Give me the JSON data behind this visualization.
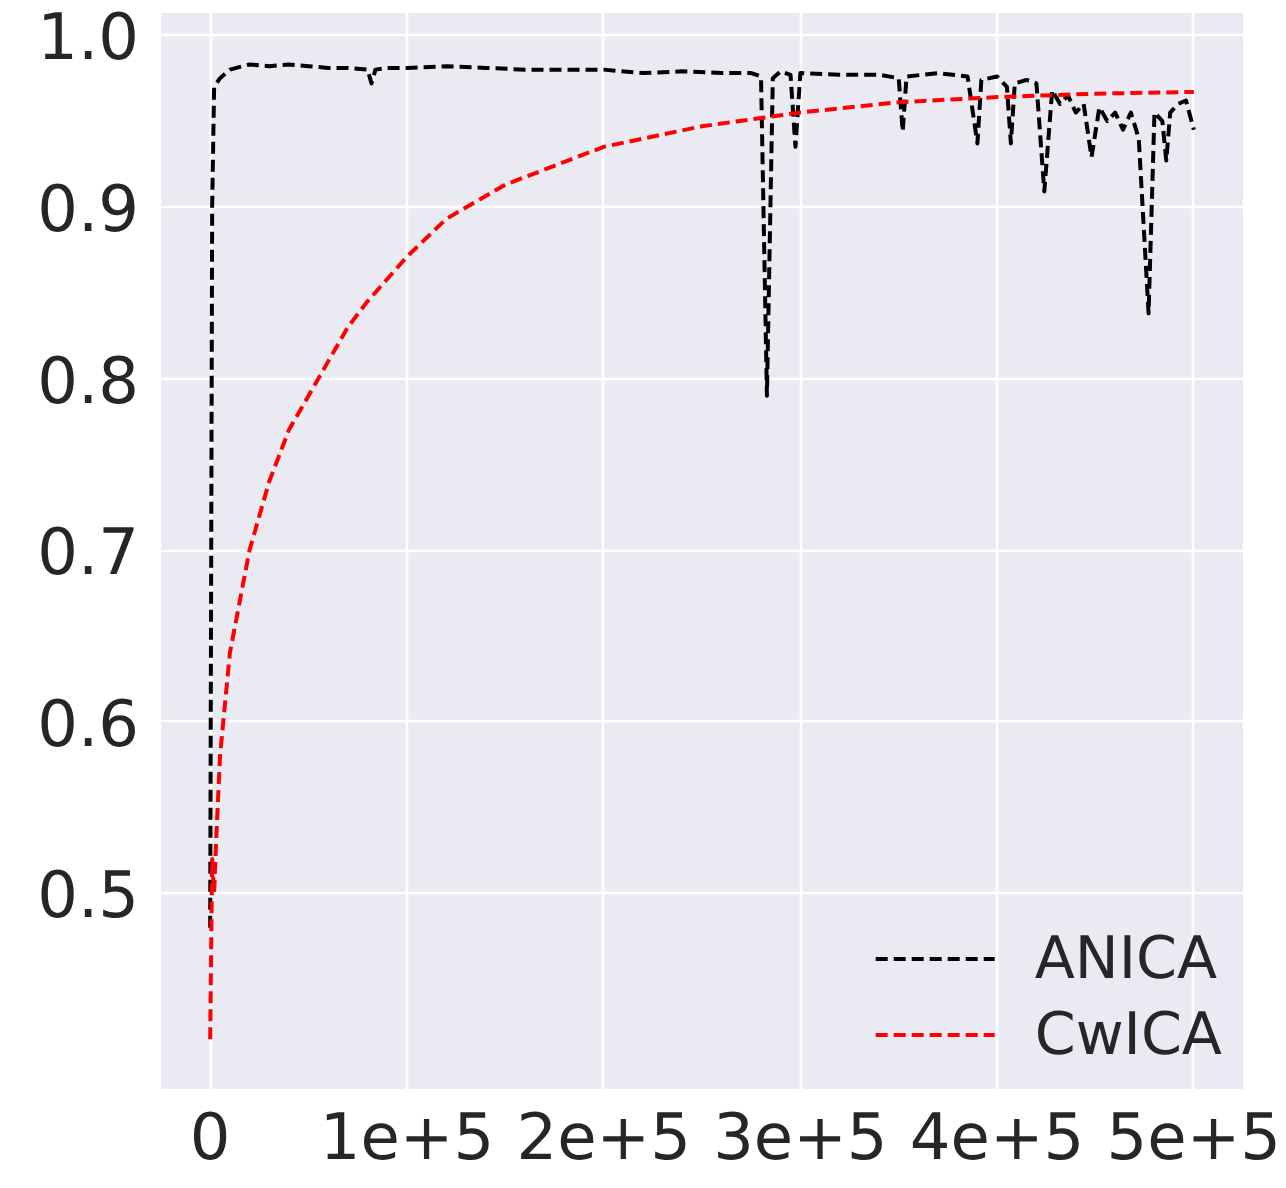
{
  "chart_data": {
    "type": "line",
    "line_style": "dashed",
    "marker": "none",
    "grid": true,
    "legend": "bottom right",
    "xlim": [
      -25000,
      525000
    ],
    "xticks": [
      {
        "value": 0,
        "label": "0"
      },
      {
        "value": 100000,
        "label": "1e+5"
      },
      {
        "value": 200000,
        "label": "2e+5"
      },
      {
        "value": 300000,
        "label": "3e+5"
      },
      {
        "value": 400000,
        "label": "4e+5"
      },
      {
        "value": 500000,
        "label": "5e+5"
      }
    ],
    "ylim": [
      0.386,
      1.013
    ],
    "yticks": [
      0.5,
      0.6,
      0.7,
      0.8,
      0.9,
      {
        "value": 1.0,
        "label": "1.0"
      }
    ],
    "series": [
      {
        "name": "ANICA",
        "color": "#000000",
        "x": [
          0,
          1000,
          2000,
          5000,
          10000,
          20000,
          30000,
          40000,
          50000,
          60000,
          70000,
          80000,
          82000,
          84000,
          90000,
          100000,
          120000,
          140000,
          160000,
          180000,
          200000,
          220000,
          240000,
          260000,
          275000,
          280000,
          283000,
          286000,
          290000,
          295000,
          297500,
          300000,
          320000,
          340000,
          350000,
          352000,
          354000,
          370000,
          385000,
          390000,
          392000,
          400000,
          405000,
          407000,
          409000,
          415000,
          420000,
          424000,
          428000,
          432000,
          436000,
          440000,
          444000,
          448000,
          452000,
          456000,
          460000,
          464000,
          468000,
          472000,
          477000,
          480000,
          484000,
          486000,
          488000,
          492000,
          496000,
          500000
        ],
        "values": [
          0.48,
          0.9,
          0.97,
          0.975,
          0.98,
          0.983,
          0.982,
          0.983,
          0.982,
          0.981,
          0.981,
          0.98,
          0.972,
          0.98,
          0.981,
          0.981,
          0.982,
          0.981,
          0.98,
          0.98,
          0.98,
          0.978,
          0.979,
          0.978,
          0.978,
          0.976,
          0.79,
          0.975,
          0.979,
          0.977,
          0.935,
          0.978,
          0.977,
          0.977,
          0.975,
          0.944,
          0.976,
          0.978,
          0.976,
          0.937,
          0.974,
          0.976,
          0.97,
          0.937,
          0.972,
          0.974,
          0.972,
          0.909,
          0.968,
          0.96,
          0.965,
          0.955,
          0.96,
          0.929,
          0.958,
          0.95,
          0.955,
          0.945,
          0.955,
          0.94,
          0.838,
          0.955,
          0.95,
          0.927,
          0.955,
          0.96,
          0.962,
          0.945
        ]
      },
      {
        "name": "CwICA",
        "color": "#ff0000",
        "x": [
          0,
          1000,
          2000,
          3000,
          5000,
          10000,
          20000,
          30000,
          40000,
          50000,
          60000,
          70000,
          80000,
          100000,
          120000,
          150000,
          200000,
          250000,
          300000,
          350000,
          400000,
          450000,
          500000
        ],
        "values": [
          0.415,
          0.52,
          0.5,
          0.53,
          0.58,
          0.64,
          0.7,
          0.74,
          0.77,
          0.79,
          0.81,
          0.83,
          0.845,
          0.871,
          0.893,
          0.913,
          0.935,
          0.947,
          0.955,
          0.961,
          0.964,
          0.966,
          0.967
        ]
      }
    ]
  }
}
